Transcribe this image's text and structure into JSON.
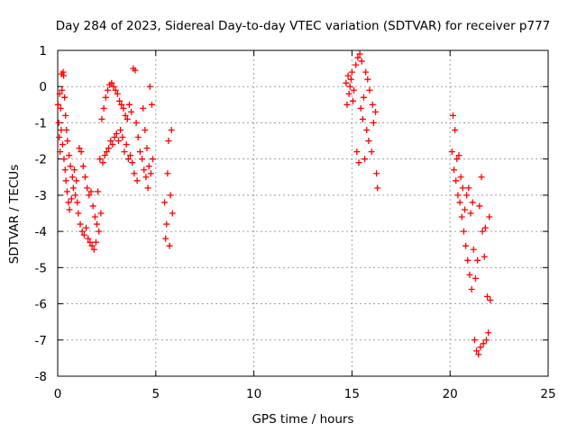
{
  "chart_data": {
    "type": "scatter",
    "title": "Day 284 of 2023, Sidereal Day-to-day VTEC variation (SDTVAR) for receiver p777",
    "xlabel": "GPS time / hours",
    "ylabel": "SDTVAR / TECUs",
    "xlim": [
      0,
      25
    ],
    "ylim": [
      -8,
      1
    ],
    "xticks": [
      "0",
      "5",
      "10",
      "15",
      "20",
      "25"
    ],
    "yticks": [
      "1",
      "0",
      "-1",
      "-2",
      "-3",
      "-4",
      "-5",
      "-6",
      "-7",
      "-8"
    ],
    "grid": true,
    "marker": "+",
    "series": [
      {
        "name": "SDTVAR",
        "color": "#ff0000",
        "points": [
          [
            0.02,
            -0.5
          ],
          [
            0.05,
            -1.0
          ],
          [
            0.08,
            -1.4
          ],
          [
            0.1,
            -0.2
          ],
          [
            0.12,
            -1.8
          ],
          [
            0.15,
            -0.6
          ],
          [
            0.18,
            -1.2
          ],
          [
            0.2,
            0.35
          ],
          [
            0.22,
            -0.1
          ],
          [
            0.25,
            -1.6
          ],
          [
            0.28,
            0.4
          ],
          [
            0.3,
            0.3
          ],
          [
            0.32,
            -2.0
          ],
          [
            0.35,
            -0.3
          ],
          [
            0.38,
            -2.3
          ],
          [
            0.4,
            -0.8
          ],
          [
            0.42,
            -2.6
          ],
          [
            0.45,
            -1.2
          ],
          [
            0.48,
            -2.9
          ],
          [
            0.5,
            -1.5
          ],
          [
            0.55,
            -3.2
          ],
          [
            0.58,
            -1.9
          ],
          [
            0.6,
            -3.4
          ],
          [
            0.65,
            -2.2
          ],
          [
            0.7,
            -3.1
          ],
          [
            0.75,
            -2.5
          ],
          [
            0.8,
            -2.8
          ],
          [
            0.85,
            -2.3
          ],
          [
            0.9,
            -3.0
          ],
          [
            0.95,
            -2.6
          ],
          [
            1.0,
            -3.2
          ],
          [
            1.05,
            -3.5
          ],
          [
            1.1,
            -1.7
          ],
          [
            1.15,
            -3.8
          ],
          [
            1.2,
            -1.8
          ],
          [
            1.25,
            -4.0
          ],
          [
            1.3,
            -2.2
          ],
          [
            1.35,
            -4.1
          ],
          [
            1.4,
            -2.5
          ],
          [
            1.45,
            -3.9
          ],
          [
            1.5,
            -2.8
          ],
          [
            1.55,
            -4.2
          ],
          [
            1.6,
            -3.0
          ],
          [
            1.65,
            -4.3
          ],
          [
            1.7,
            -2.9
          ],
          [
            1.75,
            -4.4
          ],
          [
            1.8,
            -3.3
          ],
          [
            1.85,
            -4.5
          ],
          [
            1.9,
            -3.6
          ],
          [
            1.95,
            -4.3
          ],
          [
            2.0,
            -3.8
          ],
          [
            2.05,
            -2.9
          ],
          [
            2.1,
            -4.0
          ],
          [
            2.15,
            -2.0
          ],
          [
            2.2,
            -3.5
          ],
          [
            2.25,
            -0.9
          ],
          [
            2.3,
            -2.1
          ],
          [
            2.35,
            -0.6
          ],
          [
            2.4,
            -1.9
          ],
          [
            2.45,
            -0.3
          ],
          [
            2.5,
            -1.8
          ],
          [
            2.55,
            -0.1
          ],
          [
            2.6,
            -1.7
          ],
          [
            2.65,
            0.05
          ],
          [
            2.7,
            -1.5
          ],
          [
            2.75,
            0.1
          ],
          [
            2.8,
            -1.6
          ],
          [
            2.85,
            0.0
          ],
          [
            2.9,
            -1.4
          ],
          [
            2.95,
            -0.1
          ],
          [
            3.0,
            -1.3
          ],
          [
            3.05,
            -0.2
          ],
          [
            3.1,
            -1.5
          ],
          [
            3.15,
            -0.4
          ],
          [
            3.2,
            -1.2
          ],
          [
            3.25,
            -0.5
          ],
          [
            3.3,
            -1.4
          ],
          [
            3.35,
            -0.6
          ],
          [
            3.4,
            -1.8
          ],
          [
            3.45,
            -0.8
          ],
          [
            3.5,
            -1.6
          ],
          [
            3.55,
            -0.9
          ],
          [
            3.6,
            -2.0
          ],
          [
            3.65,
            -0.5
          ],
          [
            3.7,
            -1.9
          ],
          [
            3.75,
            -0.7
          ],
          [
            3.8,
            -2.1
          ],
          [
            3.85,
            0.5
          ],
          [
            3.9,
            -2.4
          ],
          [
            3.95,
            0.45
          ],
          [
            4.0,
            -1.0
          ],
          [
            4.05,
            -2.6
          ],
          [
            4.1,
            -1.4
          ],
          [
            4.2,
            -1.8
          ],
          [
            4.3,
            -2.0
          ],
          [
            4.35,
            -0.6
          ],
          [
            4.4,
            -2.3
          ],
          [
            4.45,
            -1.2
          ],
          [
            4.5,
            -2.5
          ],
          [
            4.55,
            -1.7
          ],
          [
            4.6,
            -2.8
          ],
          [
            4.65,
            -2.2
          ],
          [
            4.7,
            0.0
          ],
          [
            4.75,
            -2.4
          ],
          [
            4.8,
            -0.5
          ],
          [
            4.85,
            -2.0
          ],
          [
            5.45,
            -3.2
          ],
          [
            5.5,
            -4.2
          ],
          [
            5.55,
            -3.8
          ],
          [
            5.6,
            -2.4
          ],
          [
            5.65,
            -1.5
          ],
          [
            5.7,
            -4.4
          ],
          [
            5.75,
            -3.0
          ],
          [
            5.8,
            -1.2
          ],
          [
            5.85,
            -3.5
          ],
          [
            14.7,
            0.1
          ],
          [
            14.75,
            -0.5
          ],
          [
            14.8,
            0.3
          ],
          [
            14.85,
            -0.2
          ],
          [
            14.9,
            0.0
          ],
          [
            14.95,
            0.2
          ],
          [
            15.0,
            0.4
          ],
          [
            15.05,
            -0.4
          ],
          [
            15.1,
            -0.1
          ],
          [
            15.2,
            0.6
          ],
          [
            15.25,
            -1.8
          ],
          [
            15.3,
            0.8
          ],
          [
            15.35,
            -2.1
          ],
          [
            15.4,
            0.9
          ],
          [
            15.45,
            -0.6
          ],
          [
            15.5,
            0.7
          ],
          [
            15.55,
            -0.9
          ],
          [
            15.6,
            -0.3
          ],
          [
            15.65,
            -2.0
          ],
          [
            15.7,
            0.4
          ],
          [
            15.75,
            -1.2
          ],
          [
            15.8,
            0.2
          ],
          [
            15.85,
            -1.5
          ],
          [
            15.9,
            -0.1
          ],
          [
            16.0,
            -1.8
          ],
          [
            16.05,
            -0.5
          ],
          [
            16.1,
            -1.0
          ],
          [
            16.2,
            -0.7
          ],
          [
            16.25,
            -2.4
          ],
          [
            16.3,
            -2.8
          ],
          [
            20.1,
            -1.8
          ],
          [
            20.15,
            -0.8
          ],
          [
            20.2,
            -2.3
          ],
          [
            20.25,
            -1.2
          ],
          [
            20.3,
            -2.6
          ],
          [
            20.35,
            -2.0
          ],
          [
            20.4,
            -3.0
          ],
          [
            20.45,
            -1.9
          ],
          [
            20.5,
            -3.2
          ],
          [
            20.55,
            -2.5
          ],
          [
            20.6,
            -3.6
          ],
          [
            20.65,
            -2.8
          ],
          [
            20.7,
            -4.0
          ],
          [
            20.75,
            -3.4
          ],
          [
            20.8,
            -4.4
          ],
          [
            20.85,
            -3.0
          ],
          [
            20.9,
            -4.8
          ],
          [
            20.95,
            -2.8
          ],
          [
            21.0,
            -5.2
          ],
          [
            21.05,
            -3.5
          ],
          [
            21.1,
            -5.6
          ],
          [
            21.15,
            -3.2
          ],
          [
            21.2,
            -4.5
          ],
          [
            21.25,
            -7.0
          ],
          [
            21.3,
            -5.3
          ],
          [
            21.35,
            -7.3
          ],
          [
            21.4,
            -4.8
          ],
          [
            21.45,
            -7.4
          ],
          [
            21.5,
            -3.3
          ],
          [
            21.55,
            -7.2
          ],
          [
            21.6,
            -2.5
          ],
          [
            21.65,
            -4.0
          ],
          [
            21.7,
            -7.1
          ],
          [
            21.75,
            -4.7
          ],
          [
            21.8,
            -3.9
          ],
          [
            21.85,
            -7.0
          ],
          [
            21.9,
            -5.8
          ],
          [
            21.95,
            -6.8
          ],
          [
            22.0,
            -3.6
          ],
          [
            22.05,
            -5.9
          ]
        ]
      }
    ]
  }
}
